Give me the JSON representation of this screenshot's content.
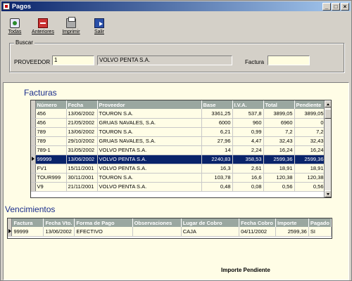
{
  "window": {
    "title": "Pagos",
    "controls": [
      "_",
      "□",
      "×"
    ]
  },
  "toolbar": [
    {
      "label": "Todas",
      "icon": "todas-icon"
    },
    {
      "label": "Anteriores",
      "icon": "anteriores-icon"
    },
    {
      "label": "Imprimir",
      "icon": "printer-icon"
    },
    {
      "label": "Salir",
      "icon": "exit-icon"
    }
  ],
  "search": {
    "legend": "Buscar",
    "proveedor_label": "PROVEEDOR",
    "proveedor_code": "1",
    "proveedor_name": "VOLVO PENTA S.A.",
    "factura_label": "Factura",
    "factura_value": ""
  },
  "facturas": {
    "title": "Facturas",
    "columns": [
      "Número",
      "Fecha",
      "Proveedor",
      "Base",
      "I.V.A.",
      "Total",
      "Pendiente"
    ],
    "rows": [
      [
        "456",
        "13/06/2002",
        "TOURON S.A.",
        "3361,25",
        "537,8",
        "3899,05",
        "3899,05"
      ],
      [
        "456",
        "21/05/2002",
        "GRUAS NAVALES, S.A.",
        "6000",
        "960",
        "6960",
        "0"
      ],
      [
        "789",
        "13/06/2002",
        "TOURON S.A.",
        "6,21",
        "0,99",
        "7,2",
        "7,2"
      ],
      [
        "789",
        "29/10/2002",
        "GRUAS NAVALES, S.A.",
        "27,96",
        "4,47",
        "32,43",
        "32,43"
      ],
      [
        "789-1",
        "31/05/2002",
        "VOLVO PENTA S.A.",
        "14",
        "2,24",
        "16,24",
        "16,24"
      ],
      [
        "99999",
        "13/06/2002",
        "VOLVO PENTA S.A.",
        "2240,83",
        "358,53",
        "2599,36",
        "2599,36"
      ],
      [
        "FV1",
        "15/11/2001",
        "VOLVO PENTA S.A.",
        "16,3",
        "2,61",
        "18,91",
        "18,91"
      ],
      [
        "TOUR999",
        "30/11/2001",
        "TOURON S.A.",
        "103,78",
        "16,6",
        "120,38",
        "120,38"
      ],
      [
        "V9",
        "21/11/2001",
        "VOLVO PENTA S.A.",
        "0,48",
        "0,08",
        "0,56",
        "0,56"
      ]
    ],
    "selected_index": 5
  },
  "vencimientos": {
    "title": "Vencimientos",
    "columns": [
      "Factura",
      "Fecha Vto.",
      "Forma de Pago",
      "Observaciones",
      "Lugar de Cobro",
      "Fecha Cobro",
      "Importe",
      "Pagado"
    ],
    "rows": [
      [
        "99999",
        "13/06/2002",
        "EFECTIVO",
        "",
        "CAJA",
        "04/11/2002",
        "2599,36",
        "SI"
      ]
    ]
  },
  "importe_pendiente_label": "Importe Pendiente"
}
